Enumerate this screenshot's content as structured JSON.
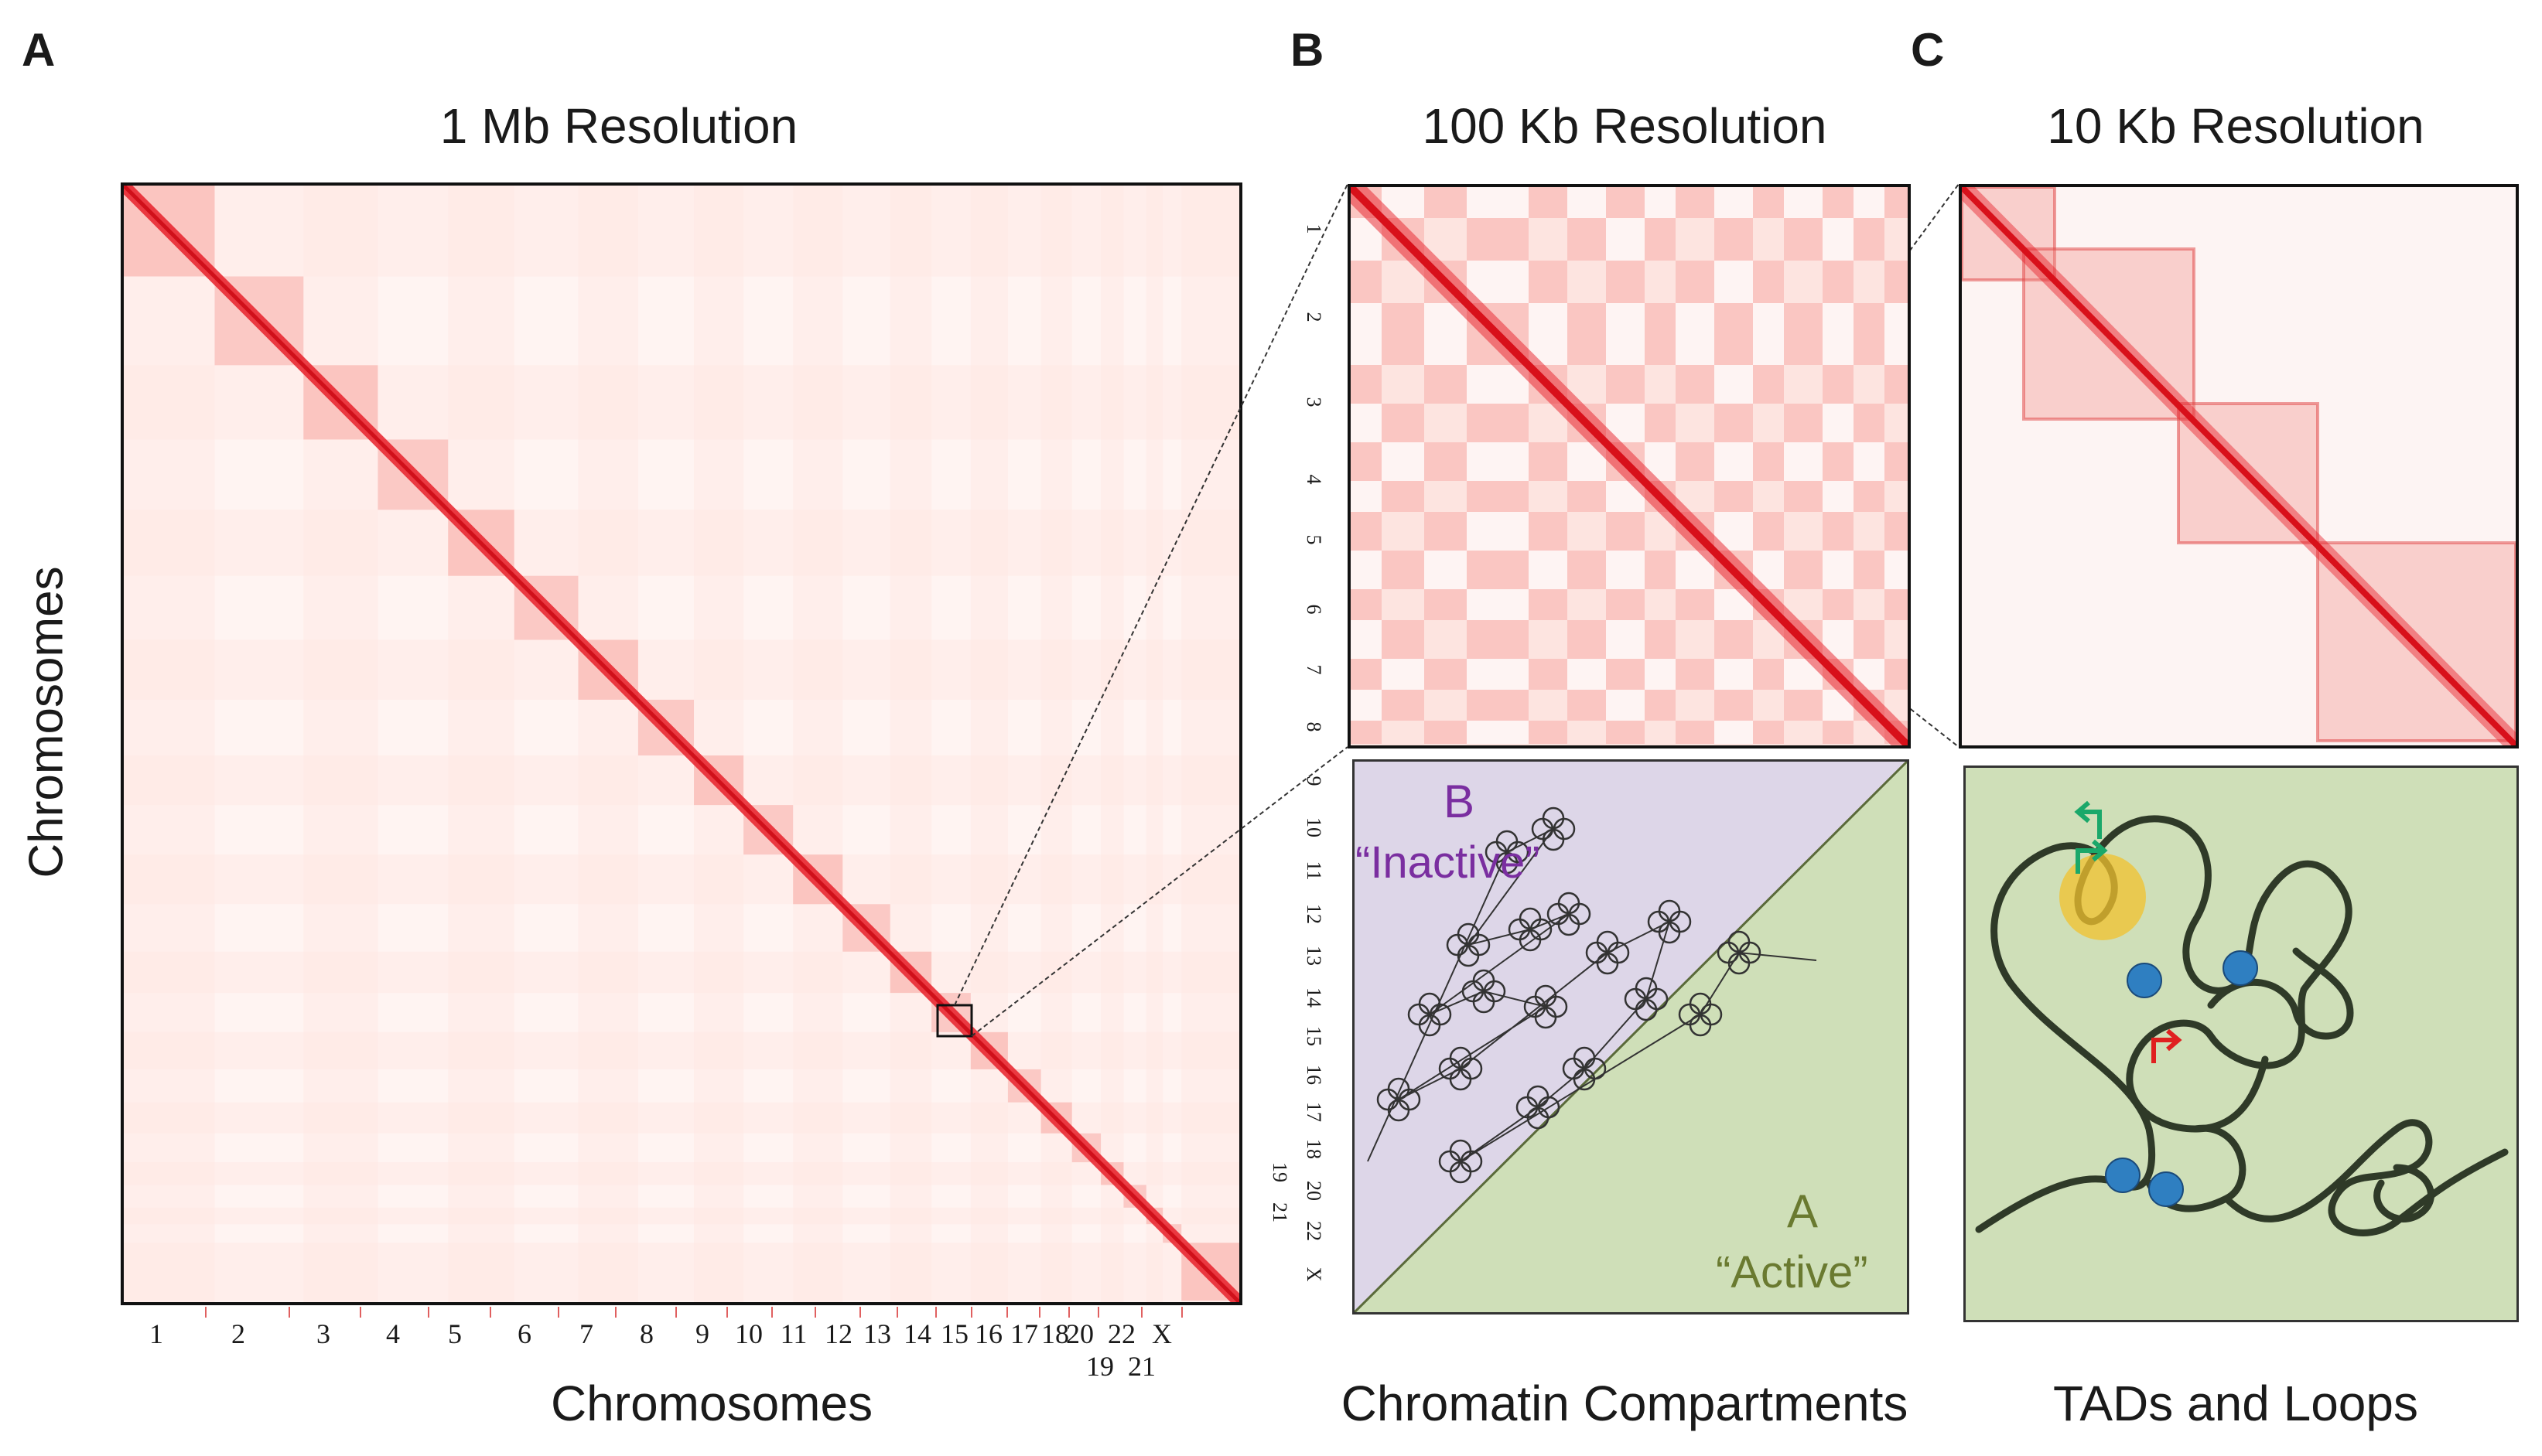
{
  "panels": {
    "a": {
      "letter": "A",
      "title": "1 Mb Resolution",
      "y_label": "Chromosomes",
      "x_label": "Chromosomes",
      "x_ticks": [
        "1",
        "2",
        "3",
        "4",
        "5",
        "6",
        "7",
        "8",
        "9",
        "10",
        "11",
        "12",
        "13",
        "14",
        "15",
        "16",
        "17",
        "18",
        "20",
        "22",
        "X"
      ],
      "x_ticks_lower": [
        "19",
        "21"
      ]
    },
    "b": {
      "letter": "B",
      "title": "100 Kb Resolution",
      "caption": "Chromatin Compartments",
      "compartment_b_letter": "B",
      "compartment_b_label": "“Inactive”",
      "compartment_a_letter": "A",
      "compartment_a_label": "“Active”",
      "side_ticks": [
        "1",
        "2",
        "3",
        "4",
        "5",
        "6",
        "7",
        "8",
        "9",
        "10",
        "11",
        "12",
        "13",
        "14",
        "15",
        "16",
        "17",
        "18",
        "20",
        "22",
        "X"
      ],
      "side_ticks_offset": [
        "19",
        "21"
      ]
    },
    "c": {
      "letter": "C",
      "title": "10 Kb Resolution",
      "caption": "TADs and Loops"
    }
  },
  "colors": {
    "heat": "#e8202a",
    "inactive_bg": "#ddd6e8",
    "active_bg": "#cfdfb8",
    "b_label": "#7a2ea0",
    "a_label": "#6a7a30",
    "cohesin": "#2f7fc1",
    "enhancer": "#f2c12e",
    "arrow_green": "#1aa86a",
    "arrow_red": "#e02020"
  }
}
